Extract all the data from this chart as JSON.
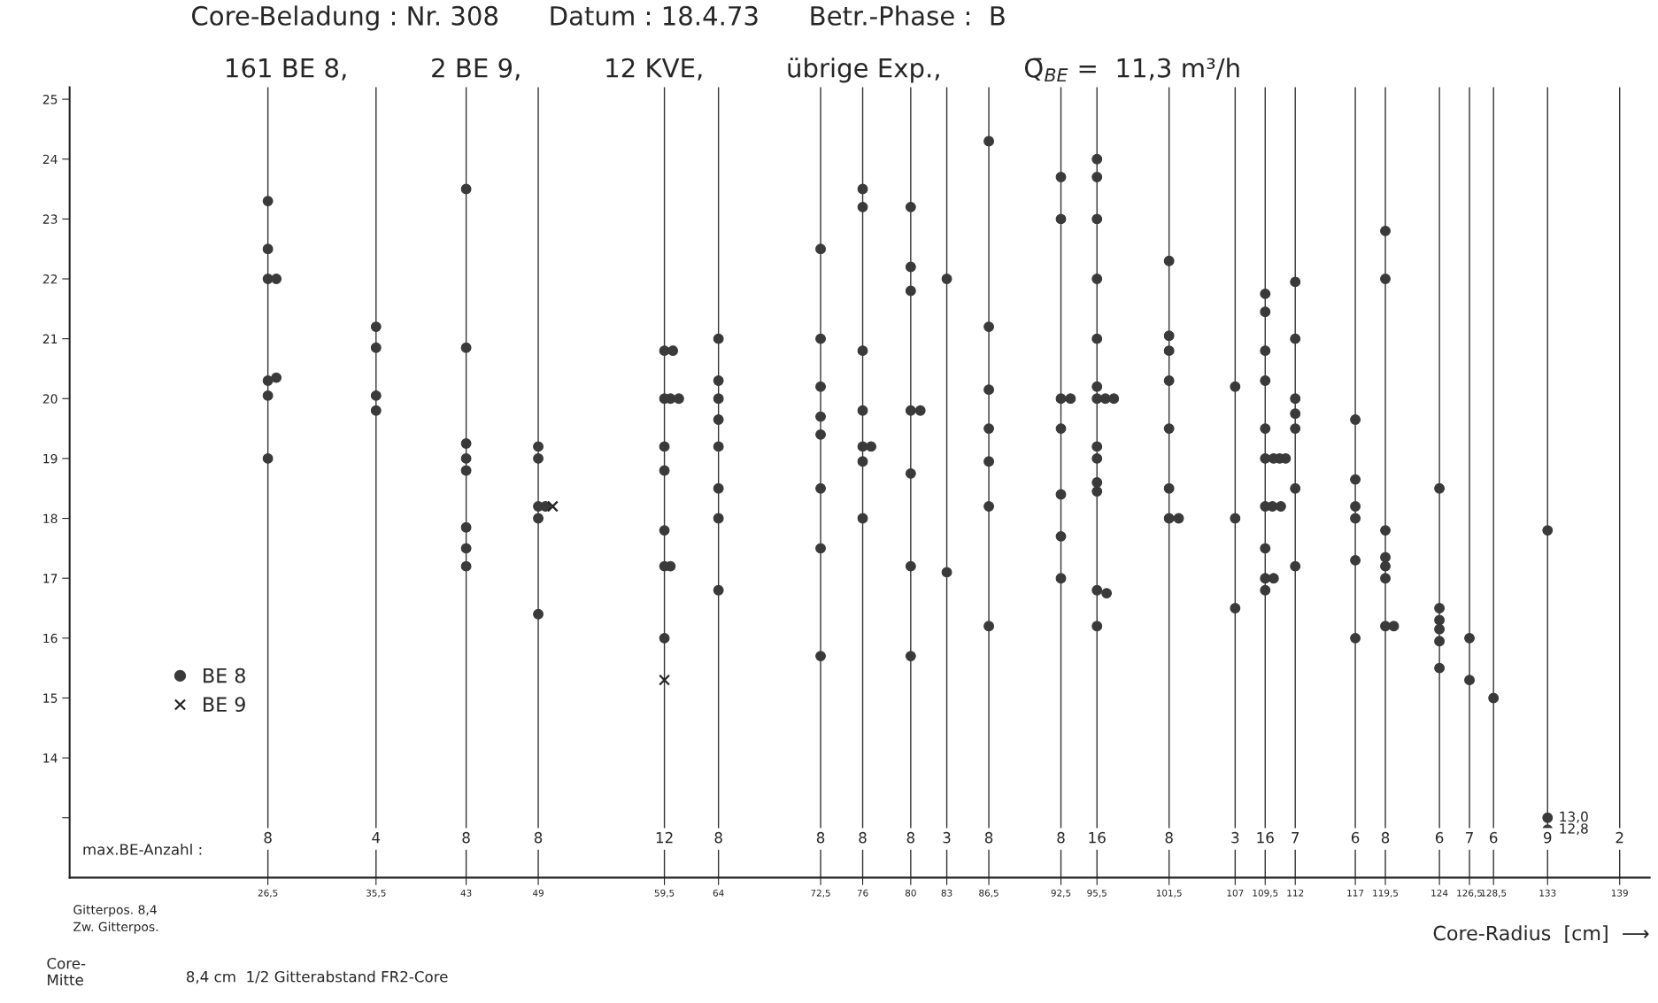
{
  "chart_data": {
    "type": "scatter",
    "title": "Core-Beladung : Nr. 308      Datum : 18.4.73      Betr.-Phase :  B",
    "subtitle": "161 BE 8,          2 BE 9,          12 KVE,          übrige Exp.,          Q̄$_{BE}$ =  11,3 m³/h",
    "xlabel": "Core-Radius  [cm]  ⟶",
    "xlim": [
      10,
      141.5
    ],
    "ylim": [
      12.0,
      25.2
    ],
    "xticks": [
      {
        "value": 26.5,
        "label": "26,5"
      },
      {
        "value": 35.5,
        "label": "35,5"
      },
      43,
      49,
      {
        "value": 59.5,
        "label": "59,5"
      },
      64,
      {
        "value": 72.5,
        "label": "72,5"
      },
      76,
      80,
      83,
      {
        "value": 86.5,
        "label": "86,5"
      },
      {
        "value": 92.5,
        "label": "92,5"
      },
      {
        "value": 95.5,
        "label": "95,5"
      },
      {
        "value": 101.5,
        "label": "101,5"
      },
      107,
      {
        "value": 109.5,
        "label": "109,5"
      },
      112,
      117,
      {
        "value": 119.5,
        "label": "119,5"
      },
      124,
      {
        "value": 126.5,
        "label": "126,5"
      },
      {
        "value": 128.5,
        "label": "128,5"
      },
      133,
      139
    ],
    "yticks": [
      {
        "value": 13,
        "label": null
      },
      14,
      15,
      16,
      17,
      18,
      19,
      20,
      21,
      22,
      23,
      24,
      25
    ],
    "grid": "x",
    "legend": "bottom left",
    "series": [
      {
        "name": "BE 8",
        "color": "#3a3a3a",
        "marker": "circle",
        "x": [
          26.5,
          26.5,
          26.5,
          27.2,
          26.5,
          27.2,
          26.5,
          26.5,
          35.5,
          35.5,
          35.5,
          35.5,
          43,
          43,
          43,
          43,
          43,
          43,
          43,
          43,
          49,
          49,
          49,
          49.6,
          49,
          49,
          59.5,
          60.2,
          59.5,
          60.0,
          60.7,
          59.5,
          59.5,
          59.5,
          59.5,
          60.0,
          59.5,
          64,
          64,
          64,
          64,
          64,
          64,
          64,
          64,
          72.5,
          72.5,
          72.5,
          72.5,
          72.5,
          72.5,
          72.5,
          72.5,
          76,
          76,
          76,
          76,
          76,
          76.7,
          76,
          76,
          80,
          80,
          80,
          80,
          80.8,
          80,
          80,
          80,
          83,
          83,
          86.5,
          86.5,
          86.5,
          86.5,
          86.5,
          86.5,
          86.5,
          92.5,
          92.5,
          92.5,
          93.3,
          92.5,
          92.5,
          92.5,
          92.5,
          95.5,
          95.5,
          95.5,
          95.5,
          95.5,
          95.5,
          95.5,
          96.2,
          96.9,
          95.5,
          95.5,
          95.5,
          95.5,
          95.5,
          96.3,
          95.5,
          101.5,
          101.5,
          101.5,
          101.5,
          101.5,
          101.5,
          101.5,
          102.3,
          107,
          107,
          107,
          109.5,
          109.5,
          109.5,
          109.5,
          109.5,
          109.5,
          110.2,
          110.7,
          111.2,
          109.5,
          110.1,
          110.8,
          109.5,
          109.5,
          110.2,
          109.5,
          112,
          112,
          112,
          112,
          112,
          112,
          112,
          117,
          117,
          117,
          117,
          117,
          117,
          119.5,
          119.5,
          119.5,
          119.5,
          119.5,
          119.5,
          119.5,
          120.2,
          124,
          124,
          124,
          124,
          124,
          124,
          126.5,
          126.5,
          128.5,
          133,
          133,
          133
        ],
        "values": [
          23.3,
          22.5,
          22.0,
          22.0,
          20.3,
          20.35,
          20.05,
          19.0,
          21.2,
          20.85,
          20.05,
          19.8,
          23.5,
          20.85,
          19.25,
          19.0,
          18.8,
          17.85,
          17.5,
          17.2,
          19.2,
          19.0,
          18.2,
          18.2,
          18.0,
          16.4,
          20.8,
          20.8,
          20.0,
          20.0,
          20.0,
          19.2,
          18.8,
          17.8,
          17.2,
          17.2,
          16.0,
          21.0,
          20.3,
          20.0,
          19.65,
          19.2,
          18.5,
          18.0,
          16.8,
          22.5,
          21.0,
          20.2,
          19.7,
          19.4,
          18.5,
          17.5,
          15.7,
          23.5,
          23.2,
          20.8,
          19.8,
          19.2,
          19.2,
          18.95,
          18.0,
          23.2,
          22.2,
          21.8,
          19.8,
          19.8,
          18.75,
          17.2,
          15.7,
          22.0,
          17.1,
          24.3,
          21.2,
          20.15,
          19.5,
          18.95,
          18.2,
          16.2,
          23.7,
          23.0,
          20.0,
          20.0,
          19.5,
          18.4,
          17.7,
          17.0,
          24.0,
          23.7,
          23.0,
          22.0,
          21.0,
          20.2,
          20.0,
          20.0,
          20.0,
          19.2,
          19.0,
          18.6,
          18.45,
          16.8,
          16.75,
          16.2,
          22.3,
          21.05,
          20.8,
          20.3,
          19.5,
          18.5,
          18.0,
          18.0,
          20.2,
          18.0,
          16.5,
          21.75,
          21.45,
          20.8,
          20.3,
          19.5,
          19.0,
          19.0,
          19.0,
          19.0,
          18.2,
          18.2,
          18.2,
          17.5,
          17.0,
          17.0,
          16.8,
          21.95,
          21.0,
          20.0,
          19.75,
          19.5,
          18.5,
          17.2,
          19.65,
          18.65,
          18.2,
          18.0,
          17.3,
          16.0,
          22.8,
          22.0,
          17.8,
          17.35,
          17.2,
          17.0,
          16.2,
          16.2,
          18.5,
          16.5,
          16.3,
          16.15,
          15.95,
          15.5,
          16.0,
          15.3,
          15.0,
          17.8,
          13.0,
          12.8
        ]
      },
      {
        "name": "BE 9",
        "color": "#222222",
        "marker": "cross",
        "x": [
          50.2,
          59.5
        ],
        "values": [
          18.2,
          15.3
        ]
      }
    ],
    "annotations": [
      {
        "text": "13,0",
        "x": 133,
        "y": 13.0
      },
      {
        "text": "12,8",
        "x": 133,
        "y": 12.8
      },
      "max.BE-Anzahl :",
      "Gitterpos. 8,4",
      "Zw. Gitterpos.",
      "Core-\nMitte",
      "8,4 cm  1/2 Gitterabstand FR2-Core",
      "8",
      "4",
      "8",
      "8",
      "12",
      "8",
      "8",
      "8",
      "8",
      "3",
      "8",
      "8",
      "16",
      "8",
      "3",
      "16",
      "7",
      "6",
      "8",
      "6",
      "7",
      "6",
      "9",
      "2"
    ]
  }
}
